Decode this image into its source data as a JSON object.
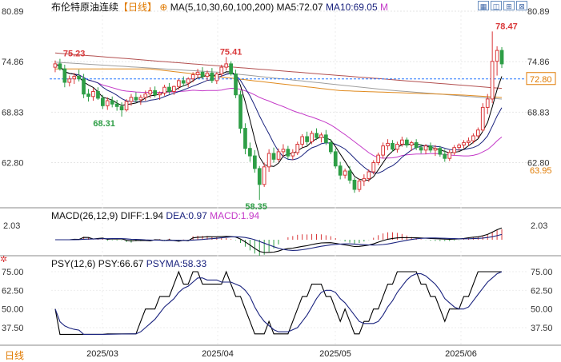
{
  "header": {
    "title": "布伦特原油连续",
    "period": "【日线】",
    "ma_label": "MA(5,10,30,60,100,200)",
    "ma5": "MA5:72.07",
    "ma10": "MA10:69.05",
    "m_marker": "M"
  },
  "toolbar": {
    "icons": [
      "grid-icon",
      "split-icon",
      "expand-icon",
      "close-icon"
    ]
  },
  "main_panel": {
    "right_ticks": [
      "80.89",
      "74.86",
      "68.83",
      "62.80"
    ],
    "left_ticks": [
      "80.89",
      "74.86",
      "68.83",
      "62.80"
    ],
    "current_price_label": "72.80",
    "ma_value_label": "63.95",
    "annotations": {
      "high_1": "75.23",
      "low_1": "68.31",
      "high_2": "75.41",
      "low_2": "58.35",
      "high_3": "78.47"
    }
  },
  "macd_panel": {
    "label": "MACD(26,12,9)",
    "diff": "DIFF:1.94",
    "dea": "DEA:0.97",
    "macd": "MACD:1.94",
    "tick": "2.03"
  },
  "psy_panel": {
    "label": "PSY(12,6)",
    "psy": "PSY:66.67",
    "psyma": "PSYMA:58.33",
    "ticks": [
      "75.00",
      "62.50",
      "50.00",
      "37.50"
    ]
  },
  "footer": {
    "period_button": "日线",
    "dates": [
      "2025/03",
      "2025/04",
      "2025/05",
      "2025/06"
    ]
  },
  "colors": {
    "up": "#d9383a",
    "down": "#2e9e46",
    "ma5": "#000000",
    "ma10": "#1a237e",
    "ma30": "#c43ac8",
    "ma60": "#e08a1e",
    "ma100": "#9e9e9e",
    "ma200": "#b35050",
    "price_line": "#2979ff"
  },
  "chart_data": [
    {
      "type": "candlestick",
      "title": "布伦特原油连续",
      "yticks": [
        62.8,
        68.83,
        74.86,
        80.89
      ],
      "ylim": [
        57.8,
        80.89
      ],
      "current_price": 72.8,
      "annotations": [
        {
          "text": "75.23",
          "x": 1,
          "value": 75.23
        },
        {
          "text": "68.31",
          "x": 14,
          "value": 68.31
        },
        {
          "text": "75.41",
          "x": 51,
          "value": 75.41
        },
        {
          "text": "58.35",
          "x": 62,
          "value": 58.35
        },
        {
          "text": "78.47",
          "x": 140,
          "value": 78.47
        }
      ],
      "ohlc": [
        [
          74.2,
          75.0,
          73.6,
          74.6
        ],
        [
          74.6,
          75.2,
          73.8,
          74.0
        ],
        [
          74.0,
          74.5,
          71.8,
          72.4
        ],
        [
          72.4,
          73.2,
          71.9,
          72.8
        ],
        [
          72.8,
          73.5,
          72.2,
          73.1
        ],
        [
          73.1,
          73.9,
          72.5,
          72.8
        ],
        [
          72.8,
          73.4,
          70.5,
          71.0
        ],
        [
          71.0,
          71.6,
          70.1,
          70.7
        ],
        [
          70.7,
          71.7,
          70.2,
          71.3
        ],
        [
          71.3,
          71.8,
          70.3,
          70.5
        ],
        [
          70.5,
          70.9,
          69.2,
          69.6
        ],
        [
          69.6,
          70.6,
          69.1,
          70.2
        ],
        [
          70.2,
          70.7,
          69.4,
          69.8
        ],
        [
          69.8,
          70.3,
          69.0,
          69.5
        ],
        [
          69.5,
          70.0,
          68.3,
          69.1
        ],
        [
          69.1,
          70.4,
          68.9,
          70.1
        ],
        [
          70.1,
          71.0,
          69.6,
          70.6
        ],
        [
          70.6,
          71.2,
          70.0,
          70.3
        ],
        [
          70.3,
          70.9,
          69.7,
          70.6
        ],
        [
          70.6,
          71.4,
          70.2,
          71.0
        ],
        [
          71.0,
          71.8,
          70.5,
          71.4
        ],
        [
          71.4,
          71.9,
          70.6,
          70.9
        ],
        [
          70.9,
          71.3,
          70.3,
          71.1
        ],
        [
          71.1,
          72.1,
          70.8,
          71.8
        ],
        [
          71.8,
          72.3,
          71.0,
          71.3
        ],
        [
          71.3,
          72.0,
          70.9,
          71.9
        ],
        [
          71.9,
          72.8,
          71.5,
          72.6
        ],
        [
          72.6,
          73.1,
          71.9,
          72.3
        ],
        [
          72.3,
          73.0,
          71.8,
          72.8
        ],
        [
          72.8,
          73.6,
          72.4,
          73.3
        ],
        [
          73.3,
          74.0,
          72.9,
          73.6
        ],
        [
          73.6,
          74.2,
          72.8,
          73.1
        ],
        [
          73.1,
          73.8,
          72.6,
          73.5
        ],
        [
          73.5,
          74.1,
          72.3,
          72.6
        ],
        [
          72.6,
          73.6,
          72.2,
          73.4
        ],
        [
          73.4,
          74.5,
          73.1,
          74.2
        ],
        [
          74.2,
          75.41,
          73.8,
          74.6
        ],
        [
          74.6,
          74.9,
          73.2,
          73.4
        ],
        [
          73.4,
          73.9,
          70.5,
          70.9
        ],
        [
          70.9,
          71.4,
          66.3,
          66.9
        ],
        [
          66.9,
          67.5,
          63.8,
          64.5
        ],
        [
          64.5,
          65.2,
          62.9,
          63.6
        ],
        [
          63.6,
          64.3,
          61.6,
          62.1
        ],
        [
          62.1,
          62.4,
          58.35,
          60.2
        ],
        [
          60.2,
          62.8,
          59.9,
          62.3
        ],
        [
          62.3,
          64.4,
          61.7,
          63.9
        ],
        [
          63.9,
          64.6,
          62.8,
          63.2
        ],
        [
          63.2,
          64.5,
          62.9,
          64.1
        ],
        [
          64.1,
          65.0,
          63.5,
          64.4
        ],
        [
          64.4,
          64.8,
          63.2,
          63.6
        ],
        [
          63.6,
          64.4,
          63.1,
          64.0
        ],
        [
          64.0,
          65.3,
          63.7,
          65.0
        ],
        [
          65.0,
          66.2,
          64.6,
          65.9
        ],
        [
          65.9,
          66.5,
          64.9,
          65.3
        ],
        [
          65.3,
          66.6,
          65.0,
          66.3
        ],
        [
          66.3,
          66.9,
          65.5,
          65.8
        ],
        [
          65.8,
          66.4,
          65.2,
          66.1
        ],
        [
          66.1,
          66.7,
          64.9,
          65.2
        ],
        [
          65.2,
          65.6,
          63.8,
          64.1
        ],
        [
          64.1,
          64.5,
          62.1,
          62.4
        ],
        [
          62.4,
          62.9,
          60.8,
          61.3
        ],
        [
          61.3,
          62.1,
          60.9,
          61.8
        ],
        [
          61.8,
          62.4,
          60.3,
          60.7
        ],
        [
          60.7,
          61.0,
          59.2,
          59.6
        ],
        [
          59.6,
          60.9,
          59.3,
          60.6
        ],
        [
          60.6,
          61.4,
          60.0,
          60.9
        ],
        [
          60.9,
          62.0,
          60.5,
          61.7
        ],
        [
          61.7,
          63.1,
          61.4,
          62.8
        ],
        [
          62.8,
          64.0,
          62.5,
          63.7
        ],
        [
          63.7,
          65.2,
          63.3,
          64.8
        ],
        [
          64.8,
          65.6,
          64.3,
          65.1
        ],
        [
          65.1,
          65.5,
          64.1,
          64.4
        ],
        [
          64.4,
          65.3,
          64.0,
          65.0
        ],
        [
          65.0,
          65.9,
          64.7,
          65.5
        ],
        [
          65.5,
          65.8,
          64.6,
          64.9
        ],
        [
          64.9,
          65.4,
          64.2,
          65.2
        ],
        [
          65.2,
          65.6,
          64.3,
          64.6
        ],
        [
          64.6,
          65.0,
          63.9,
          64.3
        ],
        [
          64.3,
          65.0,
          63.8,
          64.8
        ],
        [
          64.8,
          65.2,
          64.0,
          64.3
        ],
        [
          64.3,
          64.9,
          63.6,
          64.5
        ],
        [
          64.5,
          64.8,
          63.5,
          63.8
        ],
        [
          63.8,
          64.4,
          62.9,
          63.3
        ],
        [
          63.3,
          64.3,
          63.0,
          64.0
        ],
        [
          64.0,
          64.9,
          63.7,
          64.6
        ],
        [
          64.6,
          65.1,
          64.2,
          64.9
        ],
        [
          64.9,
          65.5,
          64.5,
          65.2
        ],
        [
          65.2,
          65.8,
          64.8,
          65.4
        ],
        [
          65.4,
          66.3,
          65.1,
          66.0
        ],
        [
          66.0,
          67.0,
          65.7,
          66.7
        ],
        [
          66.7,
          69.9,
          66.5,
          69.4
        ],
        [
          69.4,
          71.0,
          68.6,
          70.4
        ],
        [
          70.4,
          78.47,
          69.9,
          74.9
        ],
        [
          74.9,
          76.7,
          73.2,
          76.2
        ],
        [
          76.2,
          76.6,
          74.1,
          74.6
        ]
      ],
      "series": [
        {
          "name": "MA5",
          "value": 72.07
        },
        {
          "name": "MA10",
          "value": 69.05
        }
      ]
    },
    {
      "type": "line",
      "title": "MACD(26,12,9)",
      "series": [
        {
          "name": "DIFF",
          "value": 1.94
        },
        {
          "name": "DEA",
          "value": 0.97
        },
        {
          "name": "MACD",
          "value": 1.94
        }
      ]
    },
    {
      "type": "line",
      "title": "PSY(12,6)",
      "yticks": [
        37.5,
        50.0,
        62.5,
        75.0
      ],
      "series": [
        {
          "name": "PSY",
          "value": 66.67
        },
        {
          "name": "PSYMA",
          "value": 58.33
        }
      ]
    }
  ]
}
